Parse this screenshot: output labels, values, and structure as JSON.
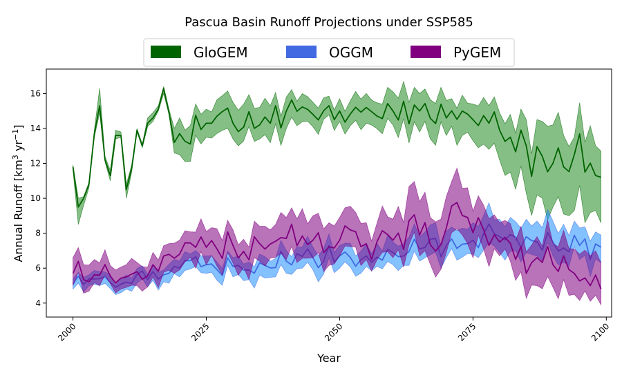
{
  "chart_data": {
    "type": "area",
    "title": "Pascua Basin Runoff Projections under SSP585",
    "xlabel": "Year",
    "ylabel_main": "Annual Runoff [km",
    "ylabel_sup1": "3",
    "ylabel_mid": " yr",
    "ylabel_sup2": "−1",
    "ylabel_end": "]",
    "xlim": [
      1995,
      2101
    ],
    "ylim": [
      3.2,
      17.4
    ],
    "x_ticks": [
      2000,
      2025,
      2050,
      2075,
      2100
    ],
    "x_tick_labels": [
      "2000",
      "2025",
      "2050",
      "2075",
      "2100"
    ],
    "y_ticks": [
      4,
      6,
      8,
      10,
      12,
      14,
      16
    ],
    "y_tick_labels": [
      "4",
      "6",
      "8",
      "10",
      "12",
      "14",
      "16"
    ],
    "legend_position": "top-center",
    "grid": false,
    "series": [
      {
        "name": "GloGEM",
        "line_color": "#006400",
        "fill_color": "#228b22",
        "anchors": [
          [
            2000,
            11.8,
            11.6,
            11.9
          ],
          [
            2001,
            9.5,
            8.5,
            10.0
          ],
          [
            2002,
            10.0,
            9.6,
            10.1
          ],
          [
            2003,
            10.8,
            10.6,
            10.9
          ],
          [
            2004,
            13.7,
            13.5,
            13.9
          ],
          [
            2005,
            15.3,
            14.9,
            16.3
          ],
          [
            2006,
            12.2,
            12.1,
            12.4
          ],
          [
            2007,
            11.3,
            11.0,
            11.6
          ],
          [
            2008,
            13.6,
            13.4,
            13.9
          ],
          [
            2009,
            13.6,
            13.5,
            13.8
          ],
          [
            2010,
            10.5,
            10.0,
            10.8
          ],
          [
            2011,
            11.7,
            11.5,
            11.9
          ],
          [
            2012,
            13.9,
            13.8,
            14.0
          ],
          [
            2013,
            13.0,
            12.9,
            13.1
          ],
          [
            2014,
            14.3,
            14.1,
            14.6
          ],
          [
            2015,
            14.6,
            14.4,
            14.9
          ],
          [
            2016,
            15.1,
            15.0,
            15.3
          ],
          [
            2017,
            16.3,
            16.0,
            16.4
          ],
          [
            2018,
            14.9,
            14.8,
            15.1
          ],
          [
            2019,
            13.2,
            12.6,
            14.0
          ],
          [
            2020,
            13.7,
            12.5,
            14.6
          ],
          [
            2025,
            14.3,
            13.5,
            15.1
          ],
          [
            2030,
            14.3,
            13.4,
            15.5
          ],
          [
            2035,
            14.2,
            13.4,
            15.2
          ],
          [
            2040,
            15.0,
            14.0,
            15.8
          ],
          [
            2045,
            14.8,
            14.1,
            15.5
          ],
          [
            2050,
            15.0,
            14.4,
            15.7
          ],
          [
            2055,
            15.2,
            14.3,
            16.0
          ],
          [
            2060,
            15.0,
            14.2,
            16.1
          ],
          [
            2065,
            15.0,
            13.8,
            16.0
          ],
          [
            2070,
            14.6,
            13.6,
            15.6
          ],
          [
            2073,
            15.0,
            13.6,
            15.9
          ],
          [
            2075,
            14.5,
            13.3,
            15.4
          ],
          [
            2078,
            14.3,
            12.8,
            15.3
          ],
          [
            2080,
            13.9,
            12.2,
            14.9
          ],
          [
            2082,
            13.5,
            11.5,
            14.8
          ],
          [
            2085,
            13.0,
            10.3,
            14.5
          ],
          [
            2088,
            12.4,
            10.0,
            14.4
          ],
          [
            2090,
            12.0,
            9.5,
            14.2
          ],
          [
            2092,
            11.8,
            9.1,
            13.6
          ],
          [
            2094,
            12.5,
            9.3,
            13.5
          ],
          [
            2096,
            11.5,
            8.6,
            13.2
          ],
          [
            2098,
            11.3,
            9.3,
            13.0
          ],
          [
            2099,
            11.2,
            8.6,
            12.7
          ]
        ]
      },
      {
        "name": "OGGM",
        "line_color": "#4169e1",
        "fill_color": "#1e90ff",
        "anchors": [
          [
            2000,
            5.1,
            4.8,
            5.4
          ],
          [
            2005,
            5.4,
            5.0,
            5.8
          ],
          [
            2010,
            5.2,
            4.8,
            5.6
          ],
          [
            2015,
            5.8,
            5.3,
            6.2
          ],
          [
            2020,
            6.0,
            5.5,
            6.4
          ],
          [
            2025,
            6.2,
            5.7,
            6.7
          ],
          [
            2030,
            6.1,
            5.5,
            6.6
          ],
          [
            2035,
            6.3,
            5.6,
            6.8
          ],
          [
            2040,
            6.4,
            5.7,
            7.0
          ],
          [
            2045,
            6.6,
            5.9,
            7.2
          ],
          [
            2050,
            6.7,
            6.0,
            7.3
          ],
          [
            2055,
            6.7,
            6.1,
            7.4
          ],
          [
            2060,
            6.9,
            6.2,
            7.5
          ],
          [
            2065,
            7.1,
            6.4,
            7.8
          ],
          [
            2070,
            7.3,
            6.6,
            8.1
          ],
          [
            2075,
            7.6,
            6.8,
            8.6
          ],
          [
            2080,
            7.8,
            6.9,
            8.8
          ],
          [
            2085,
            7.8,
            6.9,
            8.8
          ],
          [
            2090,
            7.5,
            6.7,
            8.7
          ],
          [
            2095,
            7.3,
            6.5,
            8.3
          ],
          [
            2099,
            7.2,
            6.3,
            7.9
          ]
        ]
      },
      {
        "name": "PyGEM",
        "line_color": "#800080",
        "fill_color": "#800080",
        "anchors": [
          [
            2000,
            5.7,
            5.0,
            6.6
          ],
          [
            2005,
            5.6,
            5.0,
            6.3
          ],
          [
            2010,
            5.5,
            4.9,
            6.2
          ],
          [
            2015,
            6.2,
            5.5,
            6.9
          ],
          [
            2020,
            6.8,
            5.9,
            7.6
          ],
          [
            2025,
            7.2,
            6.2,
            8.1
          ],
          [
            2030,
            7.3,
            6.3,
            8.2
          ],
          [
            2035,
            7.4,
            6.4,
            8.4
          ],
          [
            2040,
            7.7,
            6.5,
            8.9
          ],
          [
            2045,
            7.6,
            6.6,
            9.0
          ],
          [
            2050,
            7.6,
            6.7,
            8.9
          ],
          [
            2055,
            7.4,
            6.5,
            8.6
          ],
          [
            2060,
            7.6,
            6.6,
            8.8
          ],
          [
            2065,
            7.9,
            6.7,
            9.8
          ],
          [
            2070,
            8.3,
            6.9,
            10.1
          ],
          [
            2074,
            8.9,
            7.4,
            10.6
          ],
          [
            2077,
            8.2,
            7.1,
            9.6
          ],
          [
            2080,
            7.5,
            6.7,
            8.6
          ],
          [
            2083,
            6.5,
            5.3,
            7.6
          ],
          [
            2087,
            6.6,
            5.0,
            7.8
          ],
          [
            2090,
            6.2,
            4.9,
            7.4
          ],
          [
            2094,
            5.7,
            4.5,
            7.1
          ],
          [
            2097,
            5.0,
            4.1,
            6.7
          ],
          [
            2099,
            4.8,
            3.9,
            6.3
          ]
        ]
      }
    ]
  }
}
